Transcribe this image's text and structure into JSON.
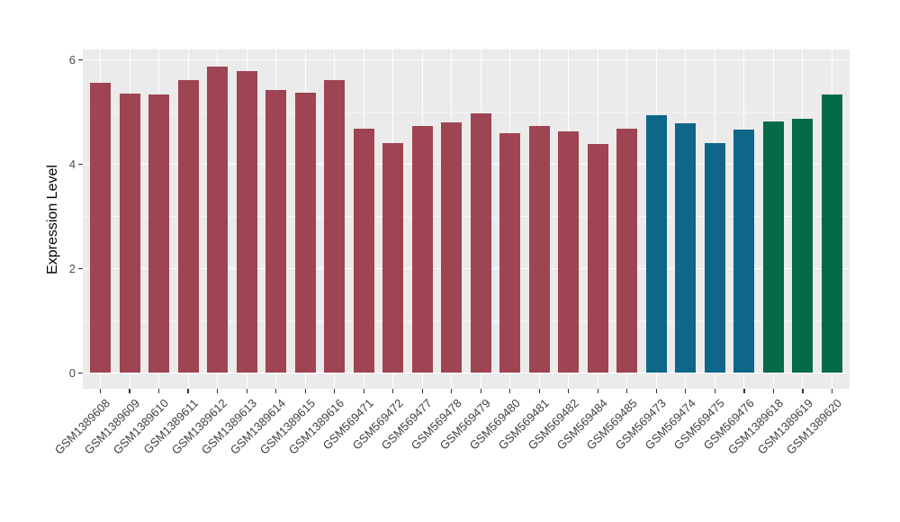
{
  "chart_data": {
    "type": "bar",
    "title": "",
    "xlabel": "",
    "ylabel": "Expression Level",
    "ylim": [
      0,
      6.2
    ],
    "grid": true,
    "legend": false,
    "panel_bg_color": "#EBEBEB",
    "gridline_color": "#FFFFFF",
    "axis_tick_color": "#333333",
    "axis_text_color": "#4D4D4D",
    "x_label_angle_deg": 45,
    "yticks": [
      {
        "label": "0",
        "value": 0
      },
      {
        "label": "2",
        "value": 2
      },
      {
        "label": "4",
        "value": 4
      },
      {
        "label": "6",
        "value": 6
      }
    ],
    "minor_ytick_values": [
      1,
      3,
      5
    ],
    "group_colors": {
      "group1": "#9E4452",
      "group2": "#0E6789",
      "group3": "#056B47"
    },
    "bars": [
      {
        "label": "GSM1389608",
        "value": 5.55,
        "group": "group1"
      },
      {
        "label": "GSM1389609",
        "value": 5.35,
        "group": "group1"
      },
      {
        "label": "GSM1389610",
        "value": 5.32,
        "group": "group1"
      },
      {
        "label": "GSM1389611",
        "value": 5.61,
        "group": "group1"
      },
      {
        "label": "GSM1389612",
        "value": 5.86,
        "group": "group1"
      },
      {
        "label": "GSM1389613",
        "value": 5.78,
        "group": "group1"
      },
      {
        "label": "GSM1389614",
        "value": 5.41,
        "group": "group1"
      },
      {
        "label": "GSM1389615",
        "value": 5.36,
        "group": "group1"
      },
      {
        "label": "GSM1389616",
        "value": 5.6,
        "group": "group1"
      },
      {
        "label": "GSM569471",
        "value": 4.67,
        "group": "group1"
      },
      {
        "label": "GSM569472",
        "value": 4.4,
        "group": "group1"
      },
      {
        "label": "GSM569477",
        "value": 4.73,
        "group": "group1"
      },
      {
        "label": "GSM569478",
        "value": 4.8,
        "group": "group1"
      },
      {
        "label": "GSM569479",
        "value": 4.97,
        "group": "group1"
      },
      {
        "label": "GSM569480",
        "value": 4.58,
        "group": "group1"
      },
      {
        "label": "GSM569481",
        "value": 4.72,
        "group": "group1"
      },
      {
        "label": "GSM569482",
        "value": 4.62,
        "group": "group1"
      },
      {
        "label": "GSM569484",
        "value": 4.38,
        "group": "group1"
      },
      {
        "label": "GSM569485",
        "value": 4.68,
        "group": "group1"
      },
      {
        "label": "GSM569473",
        "value": 4.93,
        "group": "group2"
      },
      {
        "label": "GSM569474",
        "value": 4.77,
        "group": "group2"
      },
      {
        "label": "GSM569475",
        "value": 4.4,
        "group": "group2"
      },
      {
        "label": "GSM569476",
        "value": 4.66,
        "group": "group2"
      },
      {
        "label": "GSM1389618",
        "value": 4.81,
        "group": "group3"
      },
      {
        "label": "GSM1389619",
        "value": 4.86,
        "group": "group3"
      },
      {
        "label": "GSM1389620",
        "value": 5.33,
        "group": "group3"
      }
    ]
  }
}
